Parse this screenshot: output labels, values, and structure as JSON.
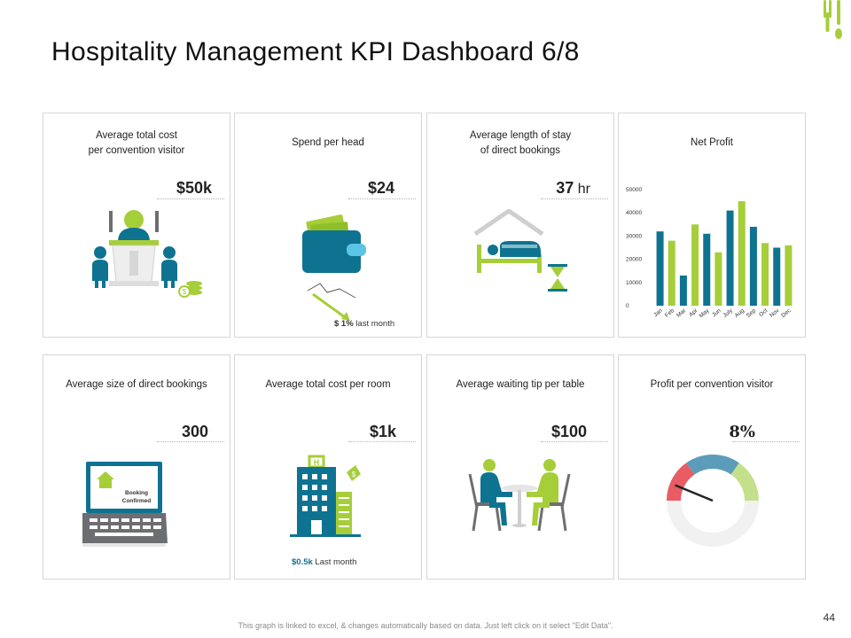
{
  "header": {
    "title": "Hospitality Management KPI Dashboard 6/8"
  },
  "cards": [
    {
      "label_line1": "Average total cost",
      "label_line2": "per convention visitor",
      "value": "$50k"
    },
    {
      "label": "Spend per head",
      "value": "$24",
      "note_value": "$ 1%",
      "note_text": " last month"
    },
    {
      "label_line1": "Average length of stay",
      "label_line2": "of direct bookings",
      "value": "37",
      "unit": " hr"
    },
    {
      "label": "Net Profit"
    },
    {
      "label": "Average size of direct bookings",
      "value": "300",
      "screen_line1": "Booking",
      "screen_line2": "Confirmed"
    },
    {
      "label": "Average total cost per room",
      "value": "$1k",
      "note_value": "$0.5k",
      "note_text": " Last month"
    },
    {
      "label": "Average waiting tip per table",
      "value": "$100"
    },
    {
      "label": "Profit per convention visitor",
      "value": "8%"
    }
  ],
  "chart_data": {
    "type": "bar",
    "title": "Net Profit",
    "categories": [
      "Jan",
      "Feb",
      "Mar",
      "Apr",
      "May",
      "Jun",
      "July",
      "Aug",
      "Sep",
      "Oct",
      "Nov",
      "Dec"
    ],
    "values": [
      32000,
      28000,
      13000,
      35000,
      31000,
      23000,
      41000,
      45000,
      34000,
      27000,
      25000,
      26000
    ],
    "ylim": [
      0,
      50000
    ],
    "yticks": [
      0,
      10000,
      20000,
      30000,
      40000,
      50000
    ],
    "colors": [
      "#0e7391",
      "#a6ce39"
    ],
    "grid": false
  },
  "gauge": {
    "percent": 8,
    "colors": [
      "#e85c64",
      "#5b9cba",
      "#c5e08a"
    ]
  },
  "colors": {
    "teal": "#0e7391",
    "lime": "#a6ce39",
    "grey": "#6d6e71"
  },
  "footer": {
    "note": "This graph is linked to excel, & changes automatically based on data. Just left click on it select \"Edit Data\".",
    "page_number": "44"
  }
}
